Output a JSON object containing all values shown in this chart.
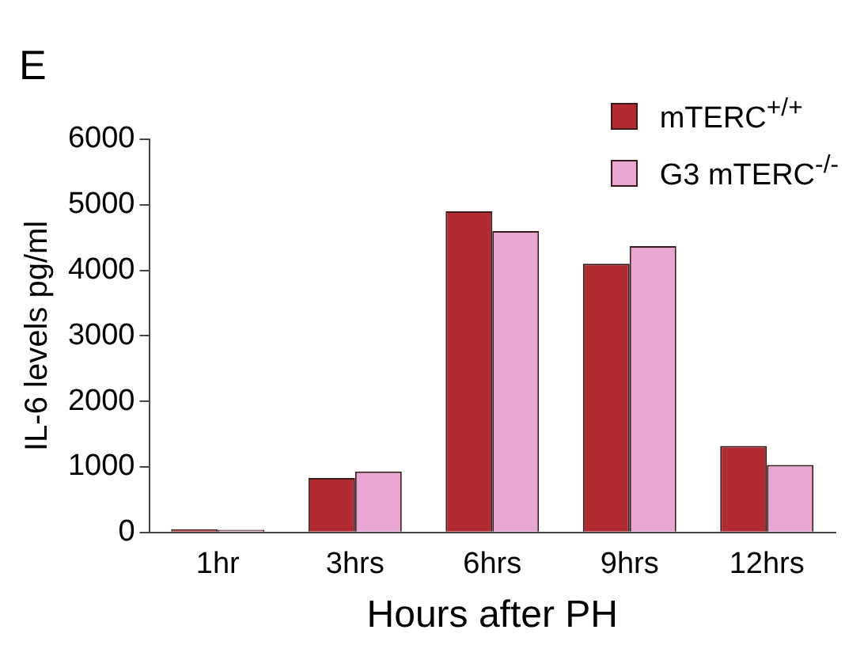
{
  "chart_data": {
    "type": "bar",
    "xlabel": "Hours after PH",
    "ylabel": "IL-6 levels pg/ml",
    "annotations": [
      "E"
    ],
    "categories": [
      "1hr",
      "3hrs",
      "6hrs",
      "9hrs",
      "12hrs"
    ],
    "series": [
      {
        "name": "mTERC$^{+/+}$",
        "color": "#b02a30",
        "values": [
          50,
          830,
          4900,
          4100,
          1320
        ]
      },
      {
        "name": "G3 mTERC$^{-/-}$",
        "color": "#e8a6d2",
        "values": [
          40,
          930,
          4600,
          4370,
          1030
        ]
      }
    ],
    "ylim": [
      0,
      6000
    ],
    "yticks": [
      0,
      1000,
      2000,
      3000,
      4000,
      5000,
      6000
    ],
    "grid": false,
    "legend": "top right"
  }
}
